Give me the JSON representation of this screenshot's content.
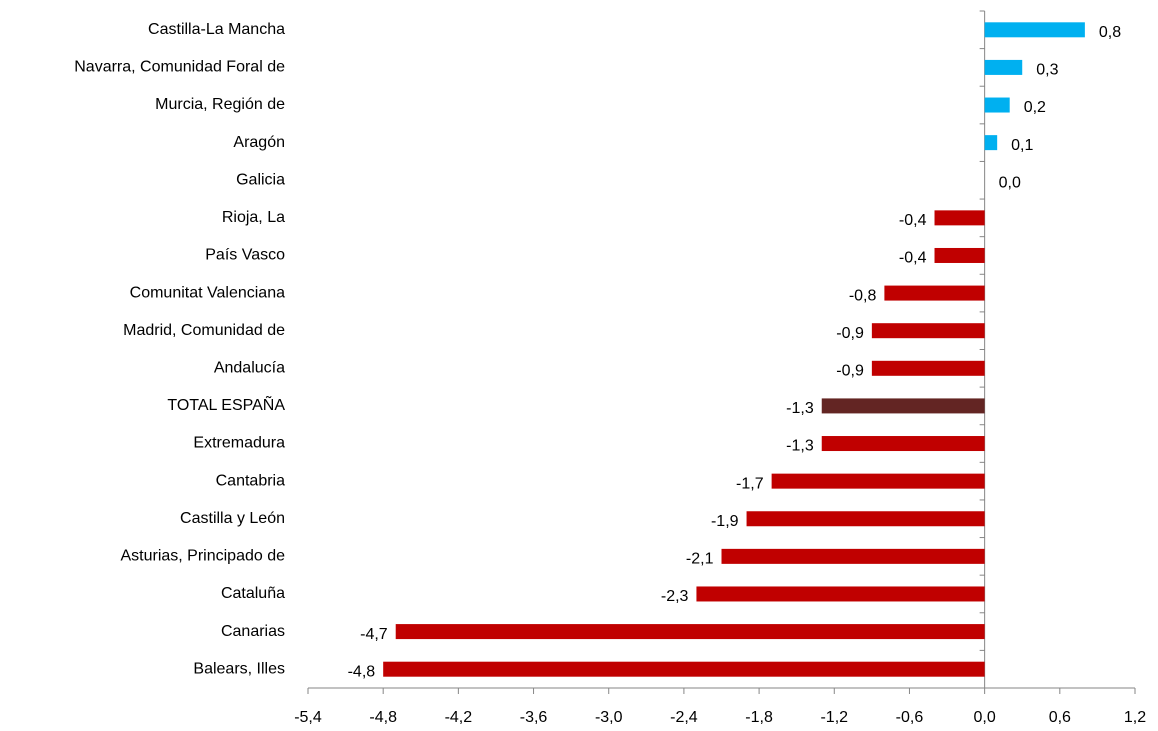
{
  "chart_data": {
    "type": "bar",
    "orientation": "horizontal",
    "categories": [
      "Castilla-La Mancha",
      "Navarra, Comunidad Foral de",
      "Murcia, Región de",
      "Aragón",
      "Galicia",
      "Rioja, La",
      "País Vasco",
      "Comunitat Valenciana",
      "Madrid, Comunidad de",
      "Andalucía",
      "TOTAL ESPAÑA",
      "Extremadura",
      "Cantabria",
      "Castilla y León",
      "Asturias, Principado de",
      "Cataluña",
      "Canarias",
      "Balears, Illes"
    ],
    "values": [
      0.8,
      0.3,
      0.2,
      0.1,
      0.0,
      -0.4,
      -0.4,
      -0.8,
      -0.9,
      -0.9,
      -1.3,
      -1.3,
      -1.7,
      -1.9,
      -2.1,
      -2.3,
      -4.7,
      -4.8
    ],
    "value_labels": [
      "0,8",
      "0,3",
      "0,2",
      "0,1",
      "0,0",
      "-0,4",
      "-0,4",
      "-0,8",
      "-0,9",
      "-0,9",
      "-1,3",
      "-1,3",
      "-1,7",
      "-1,9",
      "-2,1",
      "-2,3",
      "-4,7",
      "-4,8"
    ],
    "colors": [
      "#00b0f0",
      "#00b0f0",
      "#00b0f0",
      "#00b0f0",
      "#00b0f0",
      "#c00000",
      "#c00000",
      "#c00000",
      "#c00000",
      "#c00000",
      "#632523",
      "#c00000",
      "#c00000",
      "#c00000",
      "#c00000",
      "#c00000",
      "#c00000",
      "#c00000"
    ],
    "xlim": [
      -5.4,
      1.2
    ],
    "xticks": [
      {
        "value": -5.4,
        "label": "-5,4"
      },
      {
        "value": -4.8,
        "label": "-4,8"
      },
      {
        "value": -4.2,
        "label": "-4,2"
      },
      {
        "value": -3.6,
        "label": "-3,6"
      },
      {
        "value": -3.0,
        "label": "-3,0"
      },
      {
        "value": -2.4,
        "label": "-2,4"
      },
      {
        "value": -1.8,
        "label": "-1,8"
      },
      {
        "value": -1.2,
        "label": "-1,2"
      },
      {
        "value": -0.6,
        "label": "-0,6"
      },
      {
        "value": 0,
        "label": "0,0"
      },
      {
        "value": 0.6,
        "label": "0,6"
      },
      {
        "value": 1.2,
        "label": "1,2"
      }
    ]
  }
}
